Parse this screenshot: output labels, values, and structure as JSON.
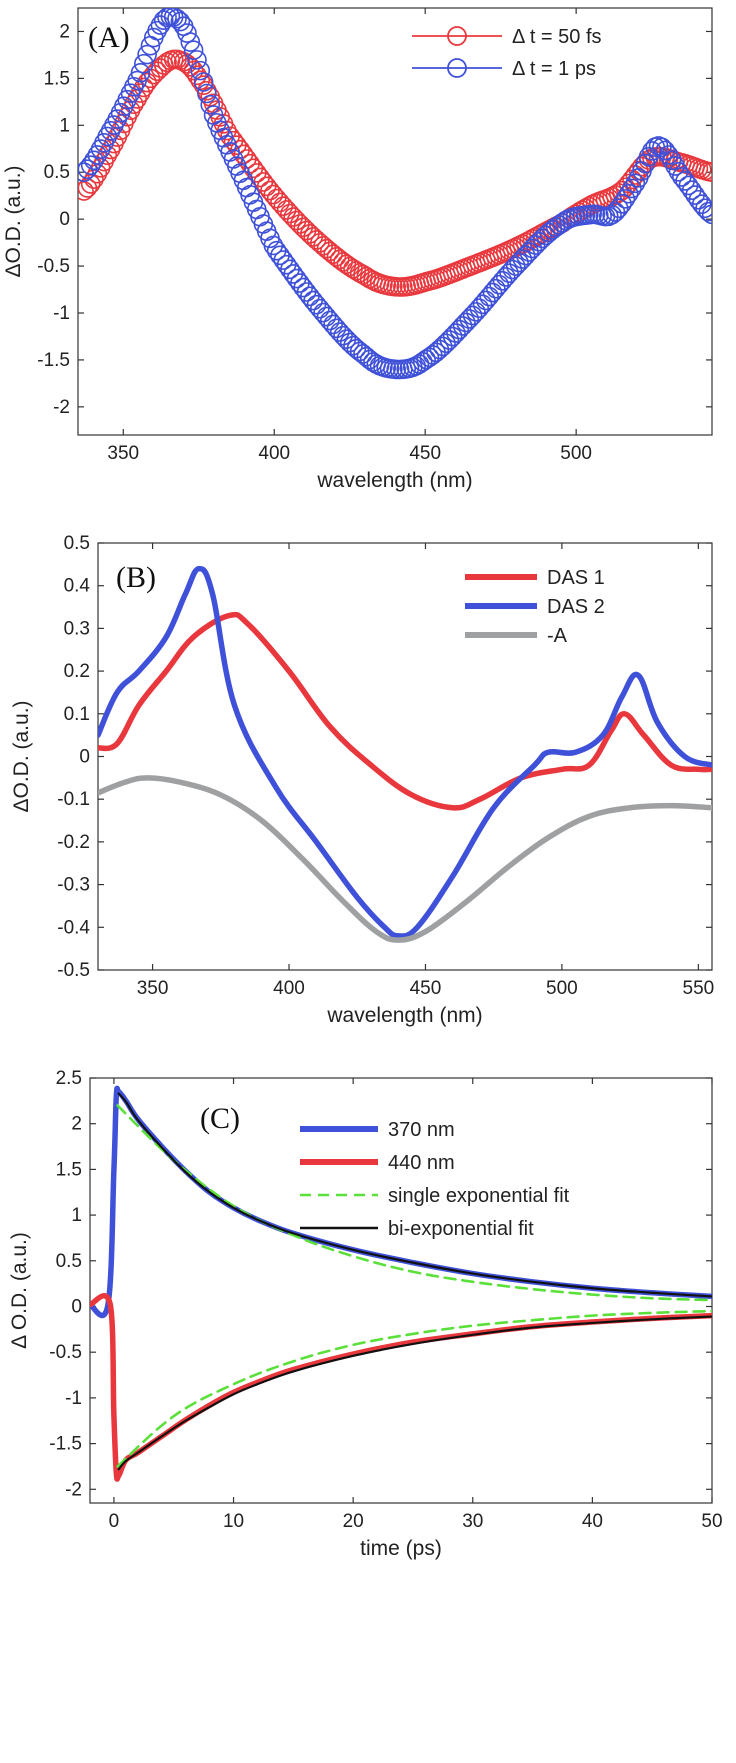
{
  "colors": {
    "red": "#e8383d",
    "blue": "#3f51d8",
    "gray": "#9ea0a2",
    "green": "#5be03a",
    "black": "#111111"
  },
  "chart_data": [
    {
      "panel": "(A)",
      "type": "scatter",
      "xlabel": "wavelength (nm)",
      "ylabel": "ΔO.D. (a.u.)",
      "xlim": [
        335,
        545
      ],
      "ylim": [
        -2.3,
        2.25
      ],
      "xticks": [
        350,
        400,
        450,
        500
      ],
      "yticks": [
        -2,
        -1.5,
        -1,
        -0.5,
        0,
        0.5,
        1,
        1.5,
        2
      ],
      "legend_position": "top-right",
      "marker": "open-circle",
      "series": [
        {
          "name": "Δ t = 50 fs",
          "color": "red",
          "x": [
            337,
            345,
            355,
            362,
            368,
            375,
            385,
            400,
            415,
            430,
            440,
            450,
            465,
            480,
            495,
            505,
            515,
            525,
            535,
            545
          ],
          "y": [
            0.3,
            0.7,
            1.3,
            1.6,
            1.7,
            1.5,
            0.9,
            0.25,
            -0.25,
            -0.6,
            -0.72,
            -0.67,
            -0.5,
            -0.3,
            -0.05,
            0.15,
            0.3,
            0.65,
            0.6,
            0.5
          ]
        },
        {
          "name": "Δ t = 1 ps",
          "color": "blue",
          "x": [
            337,
            345,
            355,
            362,
            367,
            372,
            380,
            390,
            400,
            415,
            430,
            440,
            450,
            465,
            480,
            495,
            505,
            512,
            520,
            527,
            535,
            545
          ],
          "y": [
            0.5,
            0.9,
            1.5,
            2.05,
            2.15,
            1.9,
            1.1,
            0.4,
            -0.3,
            -0.95,
            -1.45,
            -1.6,
            -1.5,
            -1.05,
            -0.5,
            -0.05,
            0.05,
            0.05,
            0.4,
            0.78,
            0.45,
            0.05
          ]
        }
      ]
    },
    {
      "panel": "(B)",
      "type": "line",
      "xlabel": "wavelength (nm)",
      "ylabel": "ΔO.D. (a.u.)",
      "xlim": [
        330,
        555
      ],
      "ylim": [
        -0.5,
        0.5
      ],
      "xticks": [
        350,
        400,
        450,
        500,
        550
      ],
      "yticks": [
        -0.5,
        -0.4,
        -0.3,
        -0.2,
        -0.1,
        0,
        0.1,
        0.2,
        0.3,
        0.4,
        0.5
      ],
      "legend_position": "top-right",
      "series": [
        {
          "name": "DAS 1",
          "color": "red",
          "x": [
            330,
            337,
            345,
            355,
            365,
            378,
            385,
            400,
            415,
            430,
            445,
            460,
            470,
            485,
            500,
            510,
            518,
            523,
            530,
            540,
            550,
            555
          ],
          "y": [
            0.02,
            0.03,
            0.12,
            0.2,
            0.28,
            0.33,
            0.31,
            0.2,
            0.07,
            -0.02,
            -0.09,
            -0.12,
            -0.1,
            -0.05,
            -0.03,
            -0.02,
            0.06,
            0.1,
            0.05,
            -0.02,
            -0.03,
            -0.03
          ]
        },
        {
          "name": "DAS 2",
          "color": "blue",
          "x": [
            330,
            337,
            345,
            355,
            362,
            367,
            372,
            380,
            395,
            410,
            425,
            435,
            440,
            447,
            460,
            475,
            490,
            495,
            505,
            515,
            522,
            528,
            535,
            545,
            555
          ],
          "y": [
            0.05,
            0.15,
            0.2,
            0.28,
            0.38,
            0.44,
            0.38,
            0.12,
            -0.07,
            -0.2,
            -0.33,
            -0.4,
            -0.42,
            -0.4,
            -0.28,
            -0.12,
            -0.02,
            0.01,
            0.01,
            0.05,
            0.14,
            0.19,
            0.08,
            0.0,
            -0.02
          ]
        },
        {
          "name": "-A",
          "color": "gray",
          "x": [
            330,
            340,
            348,
            360,
            375,
            390,
            405,
            420,
            432,
            440,
            450,
            465,
            480,
            495,
            510,
            525,
            540,
            555
          ],
          "y": [
            -0.085,
            -0.06,
            -0.05,
            -0.06,
            -0.09,
            -0.15,
            -0.24,
            -0.34,
            -0.41,
            -0.43,
            -0.41,
            -0.34,
            -0.26,
            -0.19,
            -0.14,
            -0.12,
            -0.115,
            -0.12
          ]
        }
      ]
    },
    {
      "panel": "(C)",
      "type": "line",
      "xlabel": "time (ps)",
      "ylabel": "Δ O.D. (a.u.)",
      "xlim": [
        -2,
        50
      ],
      "ylim": [
        -2.15,
        2.5
      ],
      "xticks": [
        0,
        10,
        20,
        30,
        40,
        50
      ],
      "yticks": [
        -2,
        -1.5,
        -1,
        -0.5,
        0,
        0.5,
        1,
        1.5,
        2,
        2.5
      ],
      "legend_position": "top-right",
      "series": [
        {
          "name": "370 nm",
          "color": "blue",
          "style": "solid-thick",
          "x": [
            -2,
            -0.5,
            0,
            0.2,
            0.4,
            1,
            2,
            4,
            6,
            8,
            10,
            12,
            15,
            20,
            25,
            30,
            35,
            40,
            45,
            50
          ],
          "y": [
            0.02,
            0.02,
            1.5,
            2.3,
            2.35,
            2.25,
            2.05,
            1.75,
            1.48,
            1.25,
            1.08,
            0.95,
            0.8,
            0.62,
            0.48,
            0.36,
            0.27,
            0.2,
            0.15,
            0.11
          ]
        },
        {
          "name": "440 nm",
          "color": "red",
          "style": "solid-thick",
          "x": [
            -2,
            -0.3,
            0,
            0.2,
            0.4,
            1,
            2,
            4,
            6,
            8,
            10,
            12,
            15,
            20,
            25,
            30,
            35,
            40,
            45,
            50
          ],
          "y": [
            0.02,
            0.02,
            -1.2,
            -1.82,
            -1.85,
            -1.68,
            -1.6,
            -1.42,
            -1.24,
            -1.08,
            -0.94,
            -0.83,
            -0.69,
            -0.52,
            -0.39,
            -0.3,
            -0.22,
            -0.17,
            -0.13,
            -0.1
          ]
        },
        {
          "name": "single exponential fit",
          "color": "green",
          "style": "dashed",
          "x": [
            0.3,
            5,
            10,
            15,
            20,
            25,
            30,
            35,
            40,
            45,
            50
          ],
          "y": [
            2.2,
            1.6,
            1.1,
            0.78,
            0.55,
            0.38,
            0.27,
            0.19,
            0.13,
            0.09,
            0.07
          ]
        },
        {
          "name": "single exponential fit",
          "color": "green",
          "style": "dashed",
          "legend": false,
          "x": [
            0.3,
            5,
            10,
            15,
            20,
            25,
            30,
            35,
            40,
            45,
            50
          ],
          "y": [
            -1.75,
            -1.2,
            -0.85,
            -0.6,
            -0.42,
            -0.3,
            -0.21,
            -0.15,
            -0.1,
            -0.07,
            -0.05
          ]
        },
        {
          "name": "bi-exponential fit",
          "color": "black",
          "style": "solid",
          "x": [
            0.4,
            1,
            2,
            4,
            6,
            8,
            10,
            12,
            15,
            20,
            25,
            30,
            35,
            40,
            45,
            50
          ],
          "y": [
            2.33,
            2.24,
            2.04,
            1.74,
            1.47,
            1.25,
            1.08,
            0.95,
            0.8,
            0.62,
            0.48,
            0.36,
            0.27,
            0.2,
            0.15,
            0.11
          ]
        },
        {
          "name": "bi-exponential fit",
          "color": "black",
          "style": "solid",
          "legend": false,
          "x": [
            0.4,
            1,
            2,
            4,
            6,
            8,
            10,
            12,
            15,
            20,
            25,
            30,
            35,
            40,
            45,
            50
          ],
          "y": [
            -1.78,
            -1.69,
            -1.6,
            -1.42,
            -1.25,
            -1.1,
            -0.96,
            -0.85,
            -0.71,
            -0.54,
            -0.41,
            -0.31,
            -0.23,
            -0.18,
            -0.14,
            -0.11
          ]
        }
      ]
    }
  ]
}
